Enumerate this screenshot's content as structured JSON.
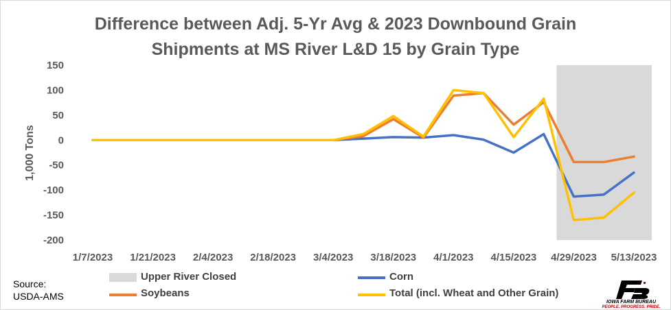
{
  "chart_data": {
    "type": "line",
    "title_line1": "Difference between Adj. 5-Yr Avg & 2023 Downbound Grain",
    "title_line2": "Shipments at MS River L&D 15 by Grain Type",
    "ylabel": "1,000 Tons",
    "ylim": [
      -200,
      150
    ],
    "yticks": [
      150,
      100,
      50,
      0,
      -50,
      -100,
      -150,
      -200
    ],
    "x": [
      "1/7/2023",
      "1/14/2023",
      "1/21/2023",
      "1/28/2023",
      "2/4/2023",
      "2/11/2023",
      "2/18/2023",
      "2/25/2023",
      "3/4/2023",
      "3/11/2023",
      "3/18/2023",
      "3/25/2023",
      "4/1/2023",
      "4/8/2023",
      "4/15/2023",
      "4/22/2023",
      "4/29/2023",
      "5/6/2023",
      "5/13/2023"
    ],
    "xtick_labels": [
      "1/7/2023",
      "1/21/2023",
      "2/4/2023",
      "2/18/2023",
      "3/4/2023",
      "3/18/2023",
      "4/1/2023",
      "4/15/2023",
      "4/29/2023",
      "5/13/2023"
    ],
    "shaded_region": {
      "label": "Upper River Closed",
      "x_start": "4/25/2023",
      "x_end": "5/19/2023",
      "color": "#d9d9d9"
    },
    "series": [
      {
        "name": "Corn",
        "color": "#4472c4",
        "values": [
          0,
          0,
          0,
          0,
          0,
          0,
          0,
          0,
          0,
          3,
          6,
          5,
          10,
          1,
          -25,
          12,
          -113,
          -109,
          -65
        ]
      },
      {
        "name": "Soybeans",
        "color": "#ed7d31",
        "values": [
          0,
          0,
          0,
          0,
          0,
          0,
          0,
          0,
          0,
          8,
          42,
          5,
          89,
          94,
          31,
          76,
          -44,
          -44,
          -33
        ]
      },
      {
        "name": "Total (incl. Wheat and Other Grain)",
        "color": "#ffc000",
        "values": [
          0,
          0,
          0,
          0,
          0,
          0,
          0,
          0,
          0,
          12,
          48,
          7,
          100,
          94,
          6,
          83,
          -160,
          -155,
          -105
        ]
      }
    ],
    "grid": false,
    "legend_position": "bottom"
  },
  "source_line1": "Source:",
  "source_line2": "USDA-AMS",
  "logo": {
    "name": "IOWA FARM BUREAU",
    "tagline": "PEOPLE. PROGRESS. PRIDE.",
    "color": "#c00000"
  }
}
